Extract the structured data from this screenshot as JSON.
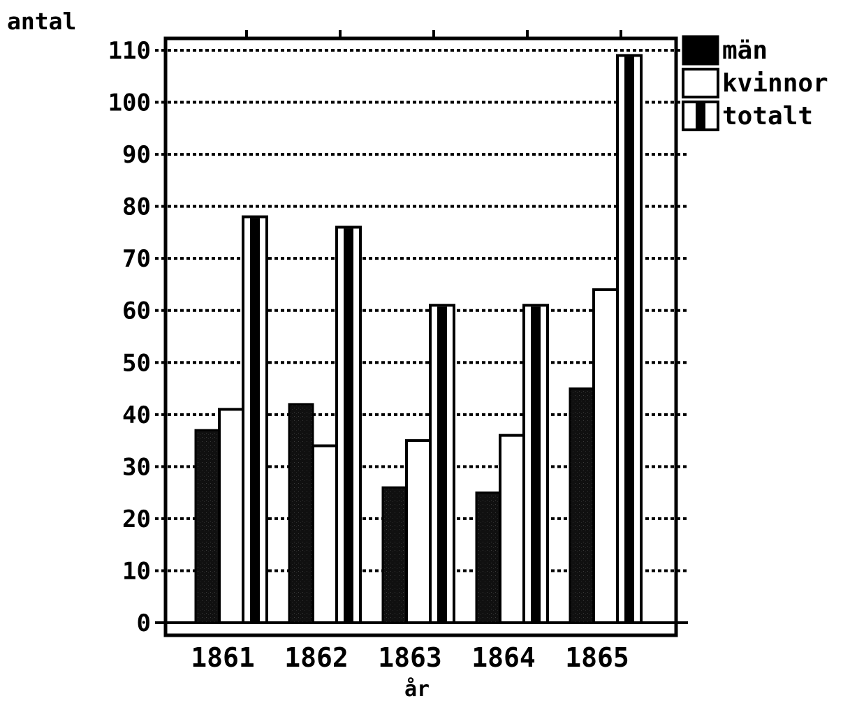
{
  "chart_data": {
    "type": "bar",
    "title": "",
    "ylabel": "antal",
    "xlabel": "år",
    "categories": [
      "1861",
      "1862",
      "1863",
      "1864",
      "1865"
    ],
    "series": [
      {
        "name": "män",
        "values": [
          37,
          42,
          26,
          25,
          45
        ]
      },
      {
        "name": "kvinnor",
        "values": [
          41,
          34,
          35,
          36,
          64
        ]
      },
      {
        "name": "totalt",
        "values": [
          78,
          76,
          61,
          61,
          109
        ]
      }
    ],
    "ylim": [
      0,
      110
    ],
    "yticks": [
      "0",
      "10",
      "20",
      "30",
      "40",
      "50",
      "60",
      "70",
      "80",
      "90",
      "100",
      "110"
    ],
    "grid": true,
    "legend_position": "top-right",
    "colors": {
      "män": "#000000",
      "kvinnor": "#ffffff",
      "totalt": "striped"
    }
  }
}
